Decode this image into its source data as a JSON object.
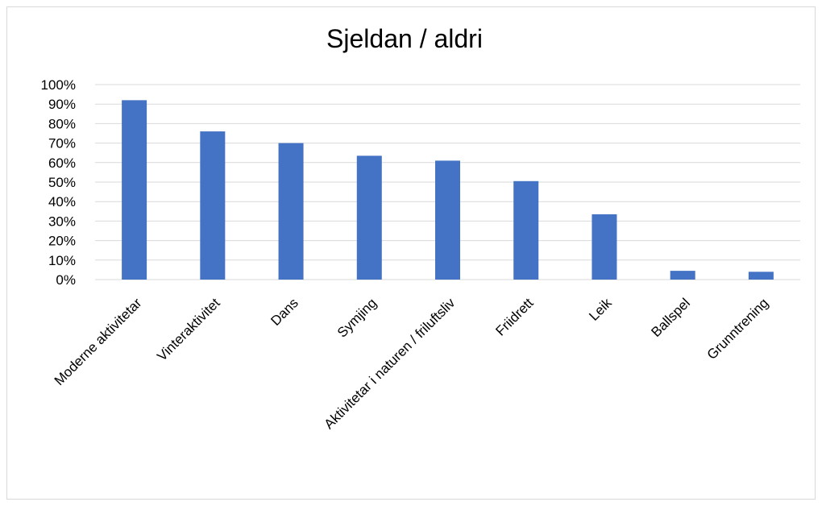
{
  "chart_data": {
    "type": "bar",
    "title": "Sjeldan / aldri",
    "xlabel": "",
    "ylabel": "",
    "categories": [
      "Moderne aktivitetar",
      "Vinteraktivitet",
      "Dans",
      "Symjing",
      "Aktivitetar i naturen / friluftsliv",
      "Friidrett",
      "Leik",
      "Ballspel",
      "Grunntrening"
    ],
    "values": [
      92,
      76,
      70,
      63.5,
      61,
      50.5,
      33.5,
      4.5,
      4
    ],
    "ylim": [
      0,
      100
    ],
    "yticks": [
      0,
      10,
      20,
      30,
      40,
      50,
      60,
      70,
      80,
      90,
      100
    ],
    "ytick_labels": [
      "0%",
      "10%",
      "20%",
      "30%",
      "40%",
      "50%",
      "60%",
      "70%",
      "80%",
      "90%",
      "100%"
    ],
    "grid": true,
    "legend": "none",
    "bar_color": "#4472c4",
    "grid_color": "#d9d9d9"
  }
}
